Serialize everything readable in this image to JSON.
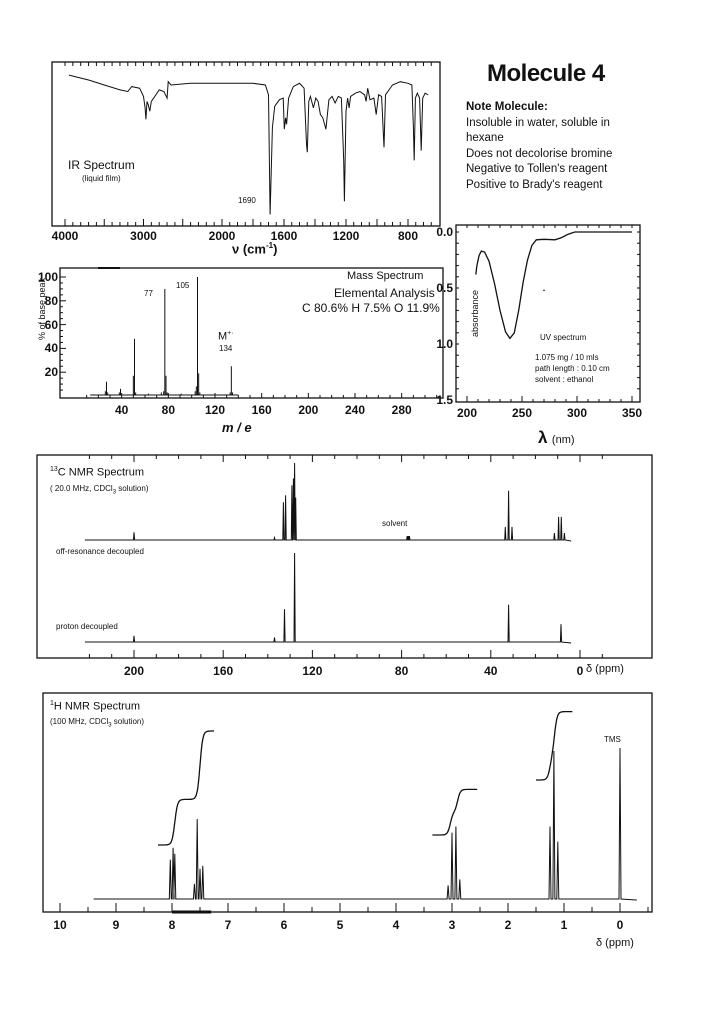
{
  "title": "Molecule 4",
  "note": {
    "heading": "Note Molecule:",
    "lines": [
      "Insoluble in water, soluble in",
      "hexane",
      "Does not decolorise bromine",
      "Negative to Tollen's reagent",
      "Positive to Brady's reagent"
    ]
  },
  "colors": {
    "ink": "#111111",
    "background": "#ffffff"
  },
  "chart_data": [
    {
      "type": "line",
      "title": "IR Spectrum",
      "subtitle": "(liquid film)",
      "xlabel": "ν (cm",
      "xlabel_sup": "-1",
      "xlabel_end": ")",
      "xticks": [
        "4000",
        "3000",
        "2000",
        "1600",
        "1200",
        "800"
      ],
      "xlim": [
        4150,
        600
      ],
      "annotation": "1690",
      "points": [
        [
          3950,
          92
        ],
        [
          3700,
          89
        ],
        [
          3500,
          86
        ],
        [
          3300,
          83
        ],
        [
          3200,
          82
        ],
        [
          3150,
          85
        ],
        [
          3050,
          84
        ],
        [
          3000,
          79
        ],
        [
          2980,
          72
        ],
        [
          2970,
          65
        ],
        [
          2955,
          76
        ],
        [
          2940,
          74
        ],
        [
          2920,
          70
        ],
        [
          2900,
          76
        ],
        [
          2870,
          78
        ],
        [
          2800,
          83
        ],
        [
          2740,
          82
        ],
        [
          2720,
          80
        ],
        [
          2700,
          78
        ],
        [
          2685,
          88
        ],
        [
          2650,
          86
        ],
        [
          2400,
          87
        ],
        [
          2000,
          87
        ],
        [
          1800,
          87
        ],
        [
          1720,
          86
        ],
        [
          1700,
          80
        ],
        [
          1690,
          7
        ],
        [
          1675,
          60
        ],
        [
          1660,
          73
        ],
        [
          1630,
          77
        ],
        [
          1605,
          78
        ],
        [
          1598,
          59
        ],
        [
          1590,
          66
        ],
        [
          1583,
          62
        ],
        [
          1570,
          78
        ],
        [
          1540,
          85
        ],
        [
          1500,
          87
        ],
        [
          1470,
          84
        ],
        [
          1455,
          50
        ],
        [
          1450,
          45
        ],
        [
          1440,
          76
        ],
        [
          1430,
          79
        ],
        [
          1410,
          72
        ],
        [
          1395,
          78
        ],
        [
          1380,
          76
        ],
        [
          1365,
          68
        ],
        [
          1350,
          66
        ],
        [
          1330,
          59
        ],
        [
          1310,
          77
        ],
        [
          1290,
          79
        ],
        [
          1270,
          75
        ],
        [
          1250,
          79
        ],
        [
          1230,
          78
        ],
        [
          1215,
          40
        ],
        [
          1210,
          15
        ],
        [
          1200,
          70
        ],
        [
          1190,
          78
        ],
        [
          1180,
          72
        ],
        [
          1170,
          79
        ],
        [
          1140,
          81
        ],
        [
          1110,
          82
        ],
        [
          1080,
          80
        ],
        [
          1070,
          76
        ],
        [
          1060,
          84
        ],
        [
          1045,
          77
        ],
        [
          1020,
          78
        ],
        [
          1005,
          68
        ],
        [
          990,
          80
        ],
        [
          970,
          79
        ],
        [
          955,
          48
        ],
        [
          945,
          80
        ],
        [
          900,
          86
        ],
        [
          850,
          88
        ],
        [
          800,
          87
        ],
        [
          775,
          86
        ],
        [
          765,
          60
        ],
        [
          760,
          40
        ],
        [
          752,
          78
        ],
        [
          740,
          81
        ],
        [
          725,
          78
        ],
        [
          715,
          46
        ],
        [
          705,
          78
        ],
        [
          690,
          81
        ],
        [
          670,
          80
        ]
      ]
    },
    {
      "type": "bar",
      "title": "Mass Spectrum",
      "ylabel": "% of base peak",
      "xlabel": "m / e",
      "xticks": [
        "40",
        "80",
        "120",
        "160",
        "200",
        "240",
        "280"
      ],
      "yticks": [
        "20",
        "40",
        "60",
        "80",
        "100"
      ],
      "xlim": [
        0,
        316
      ],
      "ylim": [
        0,
        100
      ],
      "peaks": [
        [
          26,
          4
        ],
        [
          27,
          12
        ],
        [
          28,
          3
        ],
        [
          38,
          3
        ],
        [
          39,
          6
        ],
        [
          50,
          17
        ],
        [
          51,
          48
        ],
        [
          52,
          3
        ],
        [
          63,
          2
        ],
        [
          74,
          3
        ],
        [
          76,
          4
        ],
        [
          77,
          90
        ],
        [
          78,
          17
        ],
        [
          79,
          3
        ],
        [
          91,
          2
        ],
        [
          103,
          4
        ],
        [
          104,
          8
        ],
        [
          105,
          100
        ],
        [
          106,
          19
        ],
        [
          107,
          3
        ],
        [
          133,
          3
        ],
        [
          134,
          25
        ],
        [
          135,
          3
        ]
      ],
      "peak_labels": {
        "p77": "77",
        "p105": "105",
        "molecular_ion": "M",
        "molecular_ion_sup": "+·",
        "p134": "134"
      },
      "elemental_analysis": {
        "heading": "Elemental Analysis",
        "text": "C 80.6% H 7.5% O 11.9%"
      }
    },
    {
      "type": "line",
      "title": "UV spectrum",
      "xlabel": "λ",
      "xlabel_unit": "(nm)",
      "ylabel": "absorbance",
      "xticks": [
        "200",
        "250",
        "300",
        "350"
      ],
      "yticks": [
        "0.0",
        "0.5",
        "1.0",
        "1.5"
      ],
      "xlim": [
        195,
        352
      ],
      "ylim": [
        0,
        1.5
      ],
      "y_inverted": true,
      "conditions": [
        "1.075 mg / 10 mls",
        "path length : 0.10 cm",
        "solvent : ethanol"
      ],
      "points": [
        [
          208,
          0.38
        ],
        [
          209,
          0.3
        ],
        [
          211,
          0.21
        ],
        [
          213,
          0.17
        ],
        [
          216,
          0.18
        ],
        [
          220,
          0.26
        ],
        [
          225,
          0.46
        ],
        [
          230,
          0.7
        ],
        [
          235,
          0.89
        ],
        [
          239,
          0.95
        ],
        [
          243,
          0.9
        ],
        [
          247,
          0.7
        ],
        [
          251,
          0.45
        ],
        [
          255,
          0.25
        ],
        [
          259,
          0.12
        ],
        [
          263,
          0.07
        ],
        [
          270,
          0.065
        ],
        [
          280,
          0.07
        ],
        [
          286,
          0.05
        ],
        [
          292,
          0.02
        ],
        [
          298,
          0.0
        ],
        [
          350,
          0.0
        ]
      ]
    },
    {
      "type": "line",
      "title_sup": "13",
      "title": "C NMR Spectrum",
      "subtitle": "( 20.0 MHz, CDCl",
      "subtitle_sub": "3",
      "subtitle_end": " solution)",
      "xlabel": "δ (ppm)",
      "xticks": [
        "200",
        "160",
        "120",
        "80",
        "40",
        "0"
      ],
      "xlim": [
        243,
        -32
      ],
      "labels": {
        "solvent": "solvent",
        "off_resonance": "off-resonance decoupled",
        "proton_decoupled": "proton decoupled"
      },
      "off_resonance_peaks": [
        [
          200,
          10
        ],
        [
          137,
          3
        ],
        [
          133,
          49
        ],
        [
          132,
          58
        ],
        [
          129.2,
          71
        ],
        [
          128.5,
          80
        ],
        [
          128,
          100
        ],
        [
          127.5,
          55
        ],
        [
          77.5,
          5
        ],
        [
          77,
          5
        ],
        [
          76.5,
          5
        ],
        [
          33.5,
          17
        ],
        [
          32,
          64
        ],
        [
          30.5,
          17
        ],
        [
          11.5,
          9
        ],
        [
          9.6,
          30
        ],
        [
          8.4,
          30
        ],
        [
          7,
          9
        ]
      ],
      "proton_decoupled_peaks": [
        [
          200,
          7
        ],
        [
          137,
          5
        ],
        [
          132.5,
          37
        ],
        [
          128,
          100
        ],
        [
          32,
          42
        ],
        [
          8.5,
          20
        ]
      ]
    },
    {
      "type": "line",
      "title_sup": "1",
      "title": "H NMR Spectrum",
      "subtitle": "(100 MHz, CDCl",
      "subtitle_sub": "3",
      "subtitle_end": " solution)",
      "xlabel": "δ (ppm)",
      "xticks": [
        "10",
        "9",
        "8",
        "7",
        "6",
        "5",
        "4",
        "3",
        "2",
        "1",
        "0"
      ],
      "xlim": [
        10.3,
        -0.57
      ],
      "tms_label": "TMS",
      "peaks": [
        [
          8.03,
          26
        ],
        [
          7.98,
          34
        ],
        [
          7.95,
          30
        ],
        [
          7.6,
          10
        ],
        [
          7.55,
          53
        ],
        [
          7.5,
          20
        ],
        [
          7.45,
          22
        ],
        [
          3.07,
          9
        ],
        [
          3.0,
          44
        ],
        [
          2.93,
          48
        ],
        [
          2.86,
          13
        ],
        [
          1.25,
          48
        ],
        [
          1.18,
          98
        ],
        [
          1.11,
          38
        ],
        [
          0,
          100
        ]
      ],
      "integrals": [
        {
          "from": 8.25,
          "to": 7.25,
          "steps": [
            [
              7.95,
              2
            ],
            [
              7.5,
              3
            ]
          ]
        },
        {
          "from": 3.35,
          "to": 2.55,
          "steps": [
            [
              3.03,
              1
            ],
            [
              2.9,
              1
            ]
          ]
        },
        {
          "from": 1.5,
          "to": 0.85,
          "steps": [
            [
              1.25,
              1
            ],
            [
              1.17,
              2
            ]
          ]
        }
      ]
    }
  ]
}
